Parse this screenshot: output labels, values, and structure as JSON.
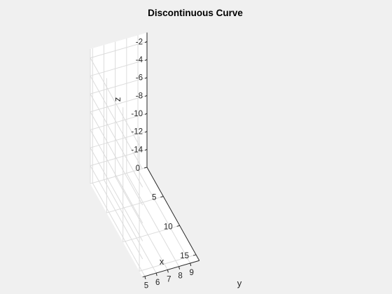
{
  "chart_data": {
    "type": "line",
    "title": "Discontinuous Curve",
    "xlabel": "x",
    "ylabel": "y",
    "zlabel": "z",
    "x_ticks": [
      0,
      5,
      10,
      15
    ],
    "y_ticks": [
      9,
      8,
      7,
      6,
      5
    ],
    "z_ticks": [
      -2,
      -4,
      -6,
      -8,
      -10,
      -12,
      -14
    ],
    "xlim": [
      0,
      16
    ],
    "ylim": [
      4.8,
      9.8
    ],
    "zlim": [
      -16,
      -1
    ],
    "grid": true,
    "box": false,
    "series": []
  }
}
